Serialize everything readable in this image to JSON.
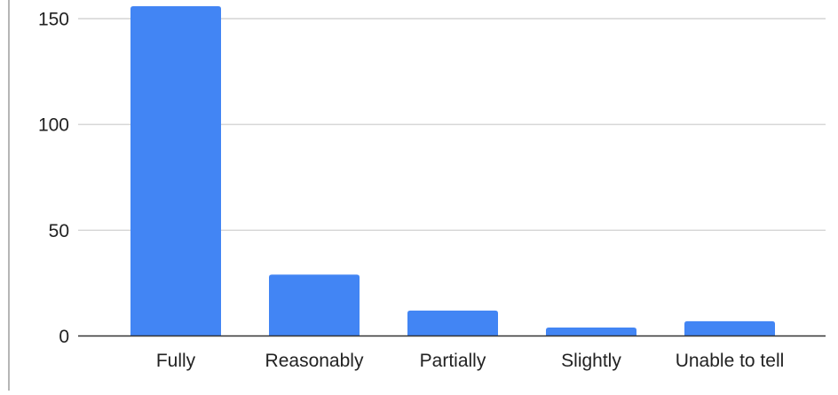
{
  "chart_data": {
    "type": "bar",
    "categories": [
      "Fully",
      "Reasonably",
      "Partially",
      "Slightly",
      "Unable to tell"
    ],
    "values": [
      156,
      29,
      12,
      4,
      7
    ],
    "title": "",
    "xlabel": "",
    "ylabel": "",
    "ylim": [
      0,
      156
    ],
    "yticks": [
      "0",
      "50",
      "100",
      "150"
    ],
    "ytick_values": [
      0,
      50,
      100,
      150
    ],
    "grid": true,
    "bar_color": "#4285f4",
    "grid_color": "#cccccc",
    "axis_color": "#333333"
  }
}
